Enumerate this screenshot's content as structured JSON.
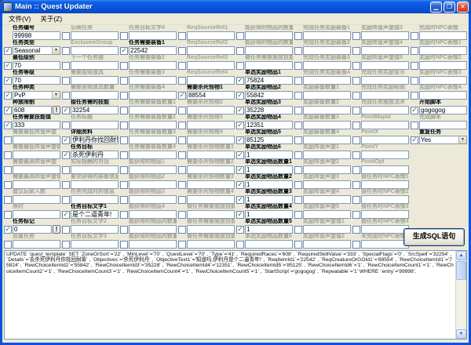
{
  "window": {
    "title": "Main :: Quest Updater"
  },
  "icons": {
    "close": "✕",
    "minimize": "▁",
    "maximize": "❐",
    "dropdown": "▼",
    "check": "✓",
    "bang": "!",
    "scroll_up": "▲",
    "scroll_down": "▼"
  },
  "menu": {
    "items": [
      {
        "label": "文件(V)"
      },
      {
        "label": "关于(Z)"
      }
    ]
  },
  "buttons": {
    "generate": "生成SQL语句"
  },
  "form": {
    "columns": [
      {
        "fields": [
          {
            "label": "任务编号",
            "value": "99998",
            "on": true,
            "cb": false
          },
          {
            "label": "任务类型",
            "value": "Seasonal",
            "on": true,
            "type": "select"
          },
          {
            "label": "最低级别",
            "value": "70",
            "on": true
          },
          {
            "label": "任务等级",
            "value": "70",
            "on": true
          },
          {
            "label": "任务种类",
            "value": "PvP",
            "on": true,
            "type": "select"
          },
          {
            "label": "种族限制",
            "value": "608",
            "on": true,
            "bang": true
          },
          {
            "label": "任务需要技能值",
            "value": "333",
            "on": true
          },
          {
            "label": "需要最低阵营声望",
            "value": "",
            "on": false
          },
          {
            "label": "需要最低阵营声望值",
            "value": "",
            "on": false
          },
          {
            "label": "需要最高阵营声望",
            "value": "",
            "on": false
          },
          {
            "label": "需要最高阵营声望值",
            "value": "",
            "on": false
          },
          {
            "label": "建议玩家人数",
            "value": "",
            "on": false
          },
          {
            "label": "限时",
            "value": "",
            "on": false
          },
          {
            "label": "任务标记",
            "value": "0",
            "on": true,
            "bang": true
          },
          {
            "label": "前置任务",
            "value": "",
            "on": false
          }
        ]
      },
      {
        "fields": [
          {
            "label": "后续任务",
            "value": "",
            "on": false
          },
          {
            "label": "ExclusiveGroup",
            "value": "",
            "on": false
          },
          {
            "label": "下一个任务链",
            "value": "",
            "on": false
          },
          {
            "label": "需要原始道具",
            "value": "",
            "on": false
          },
          {
            "label": "需要原始道具数量",
            "value": "",
            "on": false
          },
          {
            "label": "接任务需的技能",
            "value": "32254",
            "on": true
          },
          {
            "label": "任务标题",
            "value": "",
            "on": false
          },
          {
            "label": "详细资料",
            "value": "伊利丹你找回耐筹",
            "on": true
          },
          {
            "label": "任务目标",
            "value": "杀死伊利丹",
            "on": true
          },
          {
            "label": "实际报酬的对话",
            "value": "",
            "on": false
          },
          {
            "label": "要求获得的装备信息",
            "value": "",
            "on": false
          },
          {
            "label": "任务完成时的信息",
            "value": "",
            "on": false
          },
          {
            "label": "任务目标文字1",
            "value": "是个二逼青年!",
            "on": true
          },
          {
            "label": "任务目标文字2",
            "value": "",
            "on": false
          },
          {
            "label": "任务目标文字3",
            "value": "",
            "on": false
          }
        ]
      },
      {
        "fields": [
          {
            "label": "任务目标文字4",
            "value": "",
            "on": false
          },
          {
            "label": "任务需要装备1",
            "value": "22542",
            "on": true
          },
          {
            "label": "任务需要装备2",
            "value": "",
            "on": false
          },
          {
            "label": "任务需要装备3",
            "value": "",
            "on": false
          },
          {
            "label": "任务需要装备4",
            "value": "",
            "on": false
          },
          {
            "label": "任务需要装备数量1",
            "value": "",
            "on": false
          },
          {
            "label": "任务需要装备数量2",
            "value": "",
            "on": false
          },
          {
            "label": "任务需要装备数量3",
            "value": "",
            "on": false
          },
          {
            "label": "任务需要装备数量4",
            "value": "",
            "on": false
          },
          {
            "label": "能获得的物品1",
            "value": "",
            "on": false
          },
          {
            "label": "能获得的物品2",
            "value": "",
            "on": false
          },
          {
            "label": "能获得的物品3",
            "value": "",
            "on": false
          },
          {
            "label": "能获得的物品4",
            "value": "",
            "on": false
          },
          {
            "label": "能获得的物品的数量1",
            "value": "",
            "on": false
          },
          {
            "label": "能获得的物品的数量2",
            "value": "",
            "on": false
          }
        ]
      },
      {
        "fields": [
          {
            "label": "ReqSourceRef1",
            "value": "",
            "on": false
          },
          {
            "label": "ReqSourceRef2",
            "value": "",
            "on": false
          },
          {
            "label": "ReqSourceRef3",
            "value": "",
            "on": false
          },
          {
            "label": "ReqSourceRef4",
            "value": "",
            "on": false
          },
          {
            "label": "需要杀死怪物1",
            "value": "88554",
            "on": true
          },
          {
            "label": "需要杀死怪物2",
            "value": "",
            "on": false
          },
          {
            "label": "需要杀死怪物3",
            "value": "",
            "on": false
          },
          {
            "label": "需要杀死怪物4",
            "value": "",
            "on": false
          },
          {
            "label": "需要杀死怪物数量1",
            "value": "",
            "on": false
          },
          {
            "label": "需要杀死怪物数量2",
            "value": "",
            "on": false
          },
          {
            "label": "需要杀死怪物数量3",
            "value": "",
            "on": false
          },
          {
            "label": "需要杀死怪物数量4",
            "value": "",
            "on": false
          },
          {
            "label": "做任务需要施放技能1",
            "value": "",
            "on": false
          },
          {
            "label": "做任务需要施放技能2",
            "value": "",
            "on": false
          },
          {
            "label": "做任务需要施放技能3",
            "value": "",
            "on": false
          }
        ]
      },
      {
        "fields": [
          {
            "label": "能获得的物品的数量3",
            "value": "",
            "on": false
          },
          {
            "label": "能获得的物品的数量4",
            "value": "",
            "on": false
          },
          {
            "label": "做任务需要施放技能4",
            "value": "",
            "on": false
          },
          {
            "label": "单选奖励物品1",
            "value": "75824",
            "on": true
          },
          {
            "label": "单选奖励物品2",
            "value": "55842",
            "on": true
          },
          {
            "label": "单选奖励物品3",
            "value": "35228",
            "on": true
          },
          {
            "label": "单选奖励物品4",
            "value": "12351",
            "on": true
          },
          {
            "label": "单选奖励物品5",
            "value": "85125",
            "on": true
          },
          {
            "label": "单选奖励物品6",
            "value": "1",
            "on": true
          },
          {
            "label": "单选奖励物品数量1",
            "value": "1",
            "on": true
          },
          {
            "label": "单选奖励物品数量2",
            "value": "1",
            "on": true
          },
          {
            "label": "单选奖励物品数量3",
            "value": "1",
            "on": true
          },
          {
            "label": "单选奖励物品数量4",
            "value": "1",
            "on": true
          },
          {
            "label": "单选奖励物品数量5",
            "value": "1",
            "on": true
          },
          {
            "label": "单选奖励物品数量6",
            "value": "",
            "on": false
          }
        ]
      },
      {
        "fields": [
          {
            "label": "完成任务奖励装备1",
            "value": "",
            "on": false
          },
          {
            "label": "完成任务奖励装备2",
            "value": "",
            "on": false
          },
          {
            "label": "完成任务奖励装备3",
            "value": "",
            "on": false
          },
          {
            "label": "完成任务奖励装备4",
            "value": "",
            "on": false
          },
          {
            "label": "奖励装备数量1",
            "value": "",
            "on": false
          },
          {
            "label": "奖励装备数量2",
            "value": "",
            "on": false
          },
          {
            "label": "奖励装备数量3",
            "value": "",
            "on": false
          },
          {
            "label": "奖励装备数量4",
            "value": "",
            "on": false
          },
          {
            "label": "奖励阵营声望1",
            "value": "",
            "on": false
          },
          {
            "label": "奖励阵营声望2",
            "value": "",
            "on": false
          },
          {
            "label": "奖励阵营声望3",
            "value": "",
            "on": false
          },
          {
            "label": "奖励阵营声望4",
            "value": "",
            "on": false
          },
          {
            "label": "奖励阵营声望5",
            "value": "",
            "on": false
          },
          {
            "label": "奖励阵营声望值1",
            "value": "",
            "on": false
          },
          {
            "label": "奖励阵营声望值2",
            "value": "",
            "on": false
          }
        ]
      },
      {
        "fields": [
          {
            "label": "奖励阵营声望值3",
            "value": "",
            "on": false
          },
          {
            "label": "奖励阵营声望值4",
            "value": "",
            "on": false
          },
          {
            "label": "奖励阵营声望值5",
            "value": "",
            "on": false
          },
          {
            "label": "完成任务奖励金币",
            "value": "",
            "on": false
          },
          {
            "label": "完成任务奖励经验",
            "value": "",
            "on": false
          },
          {
            "label": "完成任务施放法术",
            "value": "",
            "on": false
          },
          {
            "label": "PointMapId",
            "value": "",
            "on": false
          },
          {
            "label": "PointX",
            "value": "",
            "on": false
          },
          {
            "label": "PointY",
            "value": "",
            "on": false
          },
          {
            "label": "PointOpt",
            "value": "",
            "on": false
          },
          {
            "label": "接任务时NPC表情1",
            "value": "",
            "on": false
          },
          {
            "label": "接任务时NPC表情2",
            "value": "",
            "on": false
          },
          {
            "label": "接任务时NPC表情3",
            "value": "",
            "on": false
          },
          {
            "label": "接任务时NPC表情4",
            "value": "",
            "on": false
          },
          {
            "label": "未完成时NPC表情",
            "value": "",
            "on": false
          }
        ]
      },
      {
        "fields": [
          {
            "label": "完成时NPC表情",
            "value": "",
            "on": false
          },
          {
            "label": "奖励时NPC表情1",
            "value": "",
            "on": false
          },
          {
            "label": "奖励时NPC表情2",
            "value": "",
            "on": false
          },
          {
            "label": "奖励时NPC表情3",
            "value": "",
            "on": false
          },
          {
            "label": "奖励时NPC表情4",
            "value": "",
            "on": false
          },
          {
            "label": "开始脚本",
            "value": "gogogog",
            "on": true
          },
          {
            "label": "完成脚本",
            "value": "",
            "on": false
          },
          {
            "label": "重复任务",
            "value": "Yes",
            "on": true,
            "type": "select"
          },
          null,
          null,
          null,
          null,
          null,
          null,
          null
        ]
      }
    ]
  },
  "sql": {
    "text": "UPDATE `quest_template` SET `ZoneOrSort`='22' , `MinLevel`='70' , `QuestLevel`='70' , `Type`='41' , `RequiredRaces`='608' , `RequiredSkillValue`='333' , `SpecialFlags`='0' , `SrcSpell`='32254' , `Details`='去杀死伊利丹你找回耐筹' , `Objectives`='杀死伊利丹' , `ObjectiveText1`='知道吗,伊利丹是个二逼青年!' , `ReqItemId1`='22542' , `ReqCreatureOrGOId1`='88554' , `RewChoiceItemId1`='75824' , `RewChoiceItemId2`='55842' , `RewChoiceItemId3`='35228' , `RewChoiceItemId4`='12351' , `RewChoiceItemId5`='85125' , `RewChoiceItemId6`='1' , `RewChoiceItemCount1`='1' , `RewChoiceItemCount2`='1' , `RewChoiceItemCount3`='1' , `RewChoiceItemCount4`='1' , `RewChoiceItemCount5`='1' , `StartScript`='gogogog' , `Repeatable`='1' WHERE `entry`='99998';"
  }
}
